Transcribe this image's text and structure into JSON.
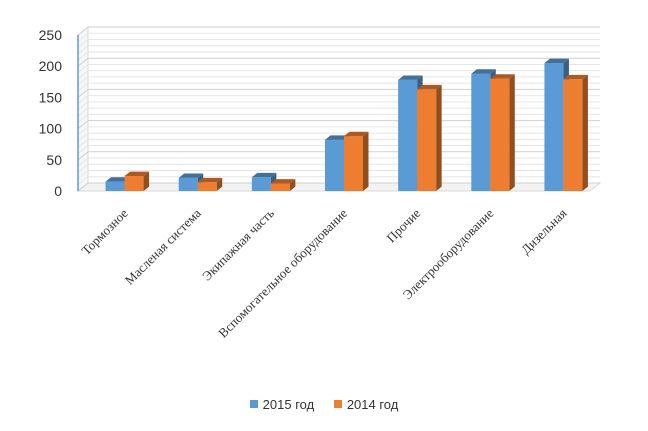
{
  "chart_data": {
    "type": "bar",
    "categories": [
      "Тормозное",
      "Масленая система",
      "Экипажная часть",
      "Вспомогательное оборудование",
      "Прочие",
      "Электрооборудование",
      "Дизельная"
    ],
    "series": [
      {
        "name": "2015 год",
        "values": [
          15,
          21,
          22,
          82,
          178,
          188,
          205
        ],
        "color": "#5B9BD5"
      },
      {
        "name": "2014 год",
        "values": [
          24,
          14,
          12,
          88,
          163,
          180,
          179
        ],
        "color": "#ED7D31"
      }
    ],
    "ylim": [
      0,
      250
    ],
    "yticks": [
      "0",
      "50",
      "100",
      "150",
      "200",
      "250"
    ],
    "grid": true,
    "legend": "bottom",
    "style": "3d-clustered-column"
  }
}
